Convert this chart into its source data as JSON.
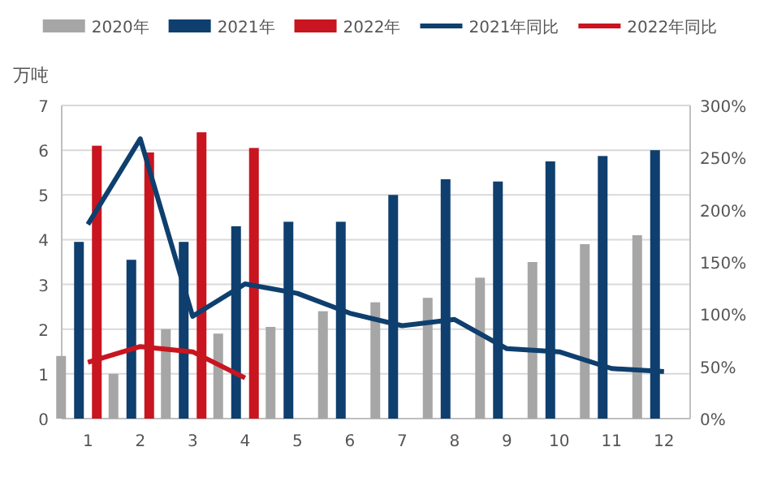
{
  "chart_data": {
    "type": "bar",
    "ylabel": "万吨",
    "categories": [
      "1",
      "2",
      "3",
      "4",
      "5",
      "6",
      "7",
      "8",
      "9",
      "10",
      "11",
      "12"
    ],
    "series": [
      {
        "name": "2020年",
        "color": "#a6a6a6",
        "values": [
          1.4,
          1.0,
          2.0,
          1.9,
          2.05,
          2.4,
          2.6,
          2.7,
          3.15,
          3.5,
          3.9,
          4.1
        ]
      },
      {
        "name": "2021年",
        "color": "#0e3f6e",
        "values": [
          3.95,
          3.55,
          3.95,
          4.3,
          4.4,
          4.4,
          5.0,
          5.35,
          5.3,
          5.75,
          5.87,
          6.0
        ]
      },
      {
        "name": "2022年",
        "color": "#c8151f",
        "values": [
          6.1,
          5.95,
          6.4,
          6.05,
          null,
          null,
          null,
          null,
          null,
          null,
          null,
          null
        ]
      },
      {
        "name": "2021年同比",
        "type": "line",
        "axis": "y2",
        "color": "#0e3f6e",
        "values": [
          186,
          268,
          98,
          129,
          120,
          101,
          89,
          95,
          67,
          64,
          48,
          45
        ]
      },
      {
        "name": "2022年同比",
        "type": "line",
        "axis": "y2",
        "color": "#c8151f",
        "values": [
          54,
          69,
          64,
          39,
          null,
          null,
          null,
          null,
          null,
          null,
          null,
          null
        ]
      }
    ],
    "ylim": [
      0,
      7
    ],
    "yticks": [
      0,
      1,
      2,
      3,
      4,
      5,
      6,
      7
    ],
    "y2lim": [
      0,
      300
    ],
    "y2ticks": [
      {
        "value": 0,
        "label": "0%"
      },
      {
        "value": 50,
        "label": "50%"
      },
      {
        "value": 100,
        "label": "100%"
      },
      {
        "value": 150,
        "label": "150%"
      },
      {
        "value": 200,
        "label": "200%"
      },
      {
        "value": 250,
        "label": "250%"
      },
      {
        "value": 300,
        "label": "300%"
      }
    ],
    "grid": "y",
    "legend": "top",
    "marker": "none",
    "line_style": "solid"
  }
}
